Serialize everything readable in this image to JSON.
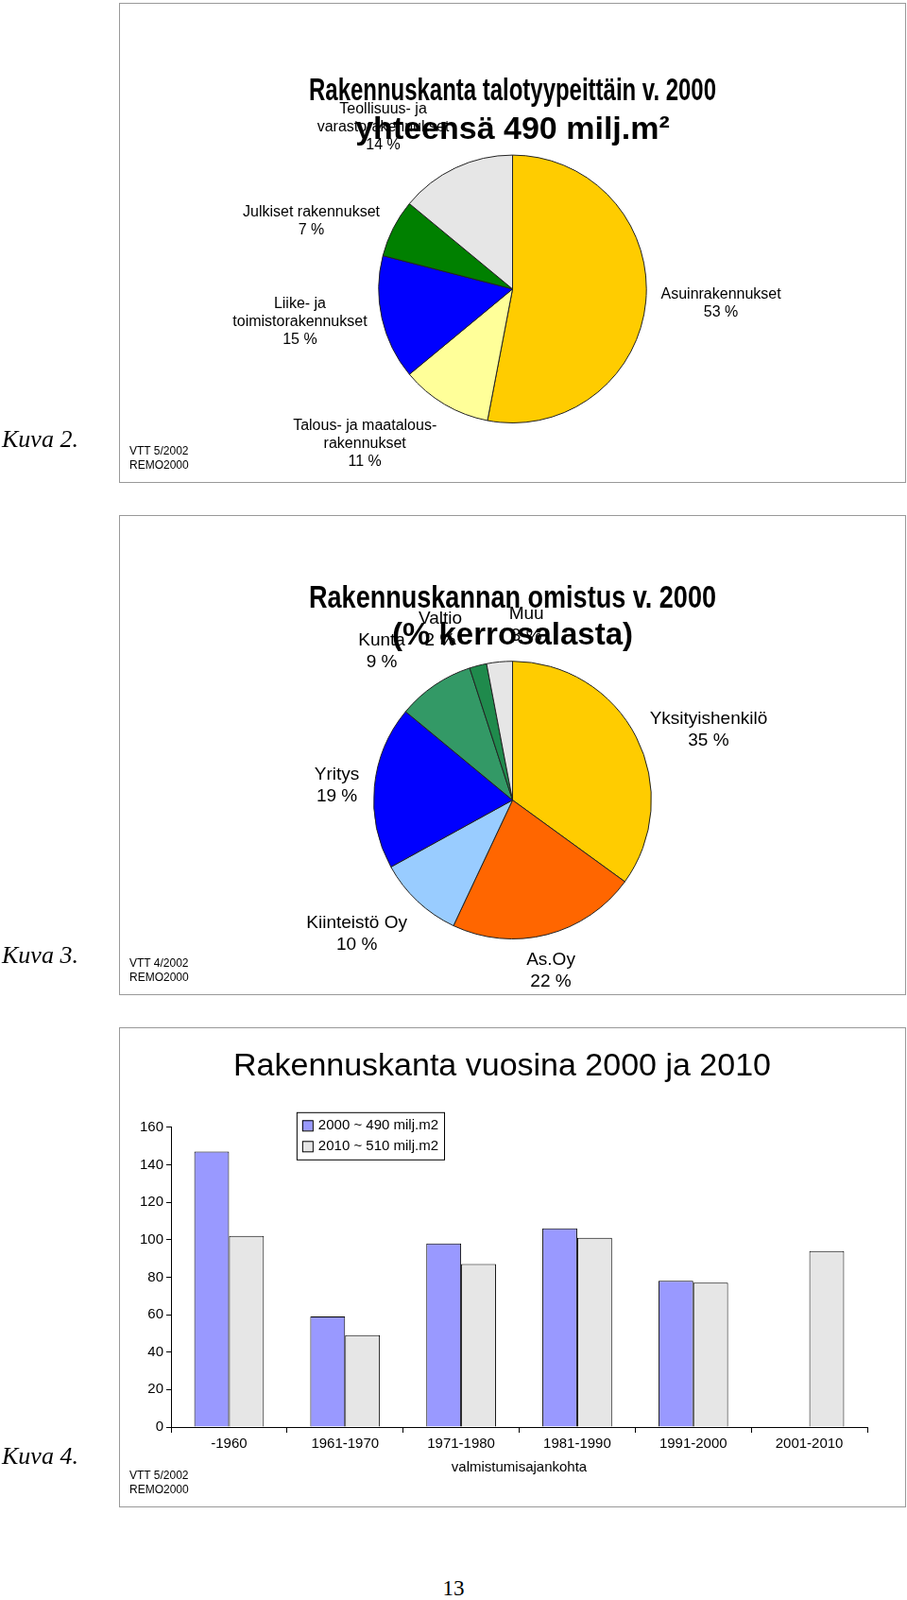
{
  "chart_data": [
    {
      "type": "pie",
      "caption": "Kuva 2.",
      "source": [
        "VTT 5/2002",
        "REMO2000"
      ],
      "title": [
        "Rakennuskanta talotyypeittäin v. 2000",
        "yhteensä 490 milj.m²"
      ],
      "categories": [
        "Asuinrakennukset",
        "Talous- ja maatalous-\nrakennukset",
        "Liike- ja\ntoimistorakennukset",
        "Julkiset rakennukset",
        "Teollisuus- ja\nvarastorakennukset"
      ],
      "values": [
        53,
        11,
        15,
        7,
        14
      ],
      "value_labels": [
        "53 %",
        "11 %",
        "15 %",
        "7 %",
        "14 %"
      ],
      "colors": [
        "#FFCC00",
        "#FFFF99",
        "#0000FF",
        "#008000",
        "#E6E6E6"
      ],
      "data_labels": true
    },
    {
      "type": "pie",
      "caption": "Kuva 3.",
      "source": [
        "VTT 4/2002",
        "REMO2000"
      ],
      "title": [
        "Rakennuskannan omistus v. 2000",
        "(% kerrosalasta)"
      ],
      "categories": [
        "Yksityishenkilö",
        "As.Oy",
        "Kiinteistö Oy",
        "Yritys",
        "Kunta",
        "Valtio",
        "Muu"
      ],
      "values": [
        35,
        22,
        10,
        19,
        9,
        2,
        3
      ],
      "value_labels": [
        "35 %",
        "22 %",
        "10 %",
        "19 %",
        "9 %",
        "2 %",
        "3 %"
      ],
      "colors": [
        "#FFCC00",
        "#FF6600",
        "#99CCFF",
        "#0000FF",
        "#339966",
        "#1F8A4C",
        "#E6E6E6"
      ],
      "data_labels": true
    },
    {
      "type": "bar",
      "caption": "Kuva 4.",
      "source": [
        "VTT 5/2002",
        "REMO2000"
      ],
      "title": "Rakennuskanta vuosina 2000 ja 2010",
      "x_label": "valmistumisajankohta",
      "categories": [
        "-1960",
        "1961-1970",
        "1971-1980",
        "1981-1990",
        "1991-2000",
        "2001-2010"
      ],
      "series": [
        {
          "name": "2000 ~ 490 milj.m2",
          "color": "#9999FF",
          "values": [
            147,
            59,
            98,
            106,
            78,
            null
          ]
        },
        {
          "name": "2010 ~ 510 milj.m2",
          "color": "#E6E6E6",
          "values": [
            102,
            49,
            87,
            101,
            77,
            94
          ]
        }
      ],
      "ylim": [
        0,
        160
      ],
      "yticks": [
        0,
        20,
        40,
        60,
        80,
        100,
        120,
        140,
        160
      ],
      "grid": false,
      "legend": "upper left"
    }
  ],
  "page_number": "13"
}
